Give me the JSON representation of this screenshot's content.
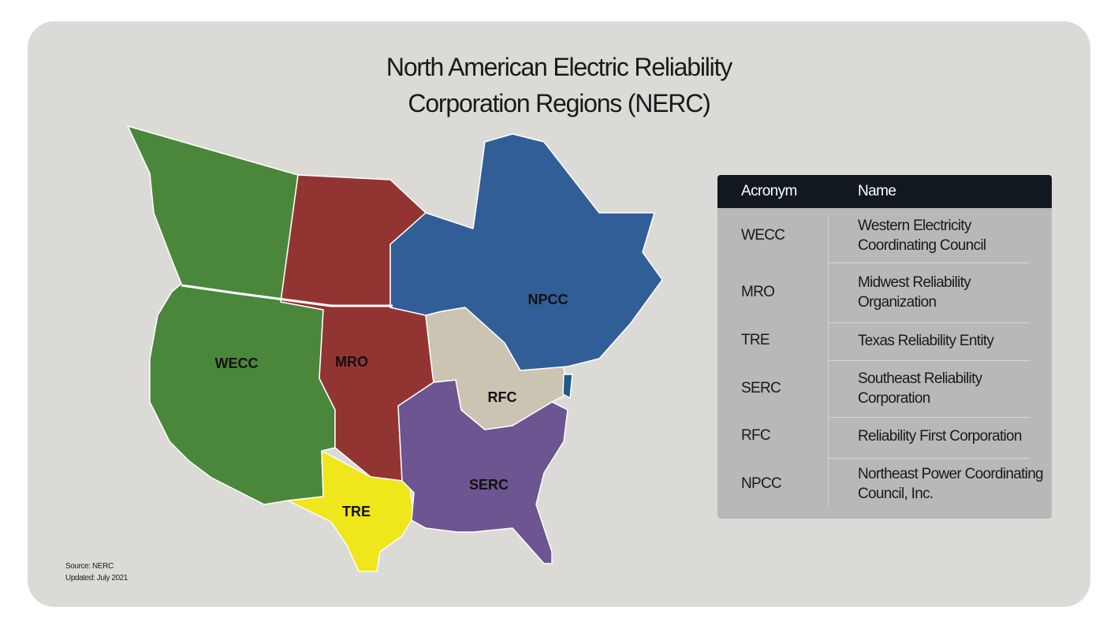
{
  "title": "North American Electric Reliability Corporation Regions (NERC)",
  "map": {
    "labels": [
      "WECC",
      "MRO",
      "TRE",
      "SERC",
      "RFC",
      "NPCC"
    ]
  },
  "table": {
    "header": [
      "Acronym",
      "Name"
    ],
    "rows": [
      [
        "WECC",
        "Western Electricity Coordinating Council"
      ],
      [
        "MRO",
        "Midwest Reliability Organization"
      ],
      [
        "TRE",
        "Texas Reliability Entity"
      ],
      [
        "SERC",
        "Southeast Reliability Corporation"
      ],
      [
        "RFC",
        "Reliability First Corporation"
      ],
      [
        "NPCC",
        "Northeast Power Coordinating Council, Inc."
      ]
    ]
  },
  "footer": {
    "source": "Source: NERC",
    "updated": "Updated: July 2021"
  }
}
